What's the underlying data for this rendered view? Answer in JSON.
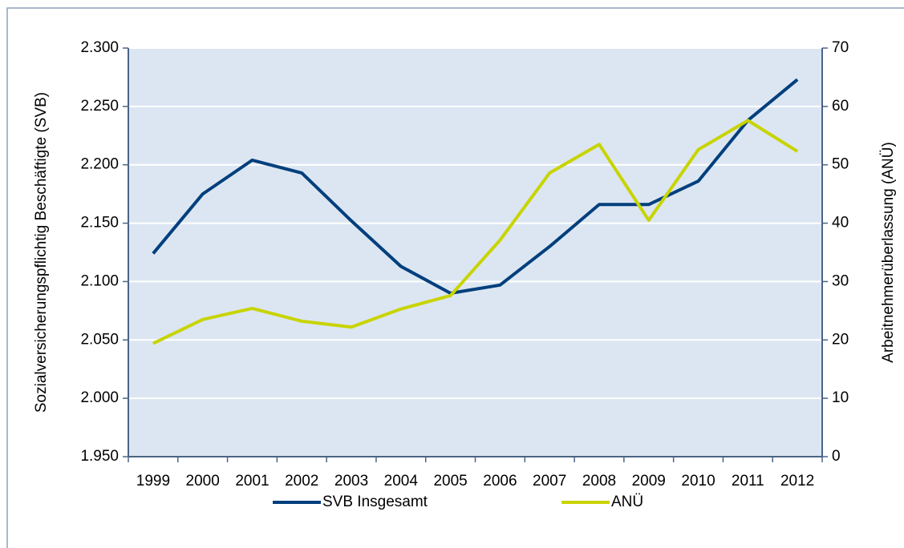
{
  "chart_data": {
    "type": "line",
    "categories": [
      "1999",
      "2000",
      "2001",
      "2002",
      "2003",
      "2004",
      "2005",
      "2006",
      "2007",
      "2008",
      "2009",
      "2010",
      "2011",
      "2012"
    ],
    "ylabel": "Sozialversicherungspflichtig Beschäftigte (SVB)",
    "y2label": "Arbeitnehmerüberlassung (ANÜ)",
    "ylim": [
      1950,
      2300
    ],
    "yticks": [
      {
        "value": 1950,
        "label": "1.950"
      },
      {
        "value": 2000,
        "label": "2.000"
      },
      {
        "value": 2050,
        "label": "2.050"
      },
      {
        "value": 2100,
        "label": "2.100"
      },
      {
        "value": 2150,
        "label": "2.150"
      },
      {
        "value": 2200,
        "label": "2.200"
      },
      {
        "value": 2250,
        "label": "2.250"
      },
      {
        "value": 2300,
        "label": "2.300"
      }
    ],
    "y2lim": [
      0,
      70
    ],
    "y2ticks": [
      0,
      10,
      20,
      30,
      40,
      50,
      60,
      70
    ],
    "grid": true,
    "legend": "bottom",
    "series": [
      {
        "name": "SVB Insgesamt",
        "color": "#003f7d",
        "values": [
          2124,
          2175,
          2204,
          2193,
          2152,
          2113,
          2090,
          2097,
          2130,
          2166,
          2166,
          2186,
          2238,
          2273
        ]
      },
      {
        "name": "ANÜ",
        "color": "#c8d400",
        "axis": "y2",
        "values": [
          19.4,
          23.5,
          25.4,
          23.2,
          22.2,
          25.3,
          27.6,
          37.1,
          48.6,
          53.5,
          40.5,
          52.6,
          57.6,
          52.3
        ]
      }
    ]
  }
}
